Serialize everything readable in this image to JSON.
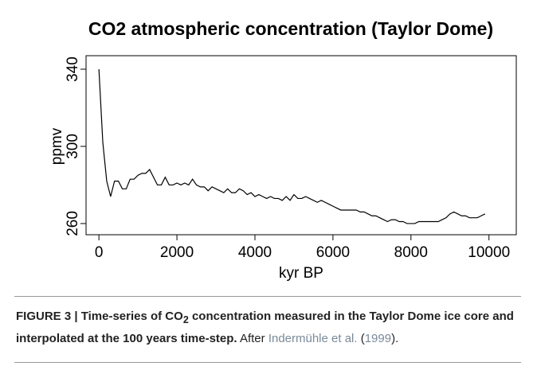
{
  "chart_data": {
    "type": "line",
    "title": "CO2 atmospheric concentration (Taylor Dome)",
    "x_label": "kyr BP",
    "y_label": "ppmv",
    "x": [
      0,
      100,
      200,
      300,
      400,
      500,
      600,
      700,
      800,
      900,
      1000,
      1100,
      1200,
      1300,
      1400,
      1500,
      1600,
      1700,
      1800,
      1900,
      2000,
      2100,
      2200,
      2300,
      2400,
      2500,
      2600,
      2700,
      2800,
      2900,
      3000,
      3100,
      3200,
      3300,
      3400,
      3500,
      3600,
      3700,
      3800,
      3900,
      4000,
      4100,
      4200,
      4300,
      4400,
      4500,
      4600,
      4700,
      4800,
      4900,
      5000,
      5100,
      5200,
      5300,
      5400,
      5500,
      5600,
      5700,
      5800,
      5900,
      6000,
      6100,
      6200,
      6300,
      6400,
      6500,
      6600,
      6700,
      6800,
      6900,
      7000,
      7100,
      7200,
      7300,
      7400,
      7500,
      7600,
      7700,
      7800,
      7900,
      8000,
      8100,
      8200,
      8300,
      8400,
      8500,
      8600,
      8700,
      8800,
      8900,
      9000,
      9100,
      9200,
      9300,
      9400,
      9500,
      9600,
      9700,
      9800,
      9900
    ],
    "series": [
      {
        "color": "#000000",
        "values": [
          340,
          302,
          282,
          274,
          282,
          282,
          278,
          278,
          283,
          283,
          285,
          286,
          286,
          288,
          284,
          280,
          280,
          284,
          280,
          280,
          281,
          280,
          281,
          280,
          283,
          280,
          279,
          279,
          277,
          279,
          278,
          277,
          276,
          278,
          276,
          276,
          278,
          277,
          275,
          276,
          274,
          275,
          274,
          273,
          274,
          273,
          273,
          272,
          274,
          272,
          275,
          273,
          273,
          274,
          273,
          272,
          271,
          272,
          271,
          270,
          269,
          268,
          267,
          267,
          267,
          267,
          267,
          266,
          266,
          265,
          264,
          264,
          263,
          262,
          261,
          262,
          262,
          261,
          261,
          260,
          260,
          260,
          261,
          261,
          261,
          261,
          261,
          261,
          262,
          263,
          265,
          266,
          265,
          264,
          264,
          263,
          263,
          263,
          264,
          265
        ]
      }
    ],
    "xlim": [
      -330,
      10700
    ],
    "ylim": [
      254.2,
      347
    ],
    "xticks": [
      0,
      2000,
      4000,
      6000,
      8000,
      10000
    ],
    "yticks": [
      260,
      300,
      340
    ]
  },
  "caption": {
    "bold_1": "FIGURE 3 | Time-series of CO",
    "subscript": "2",
    "bold_2": "concentration measured in the Taylor Dome ice core and interpolated at the 100 years time-step.",
    "after": "After",
    "authors": "Indermühle et al.",
    "open": "(",
    "year": "1999",
    "close": ")."
  }
}
